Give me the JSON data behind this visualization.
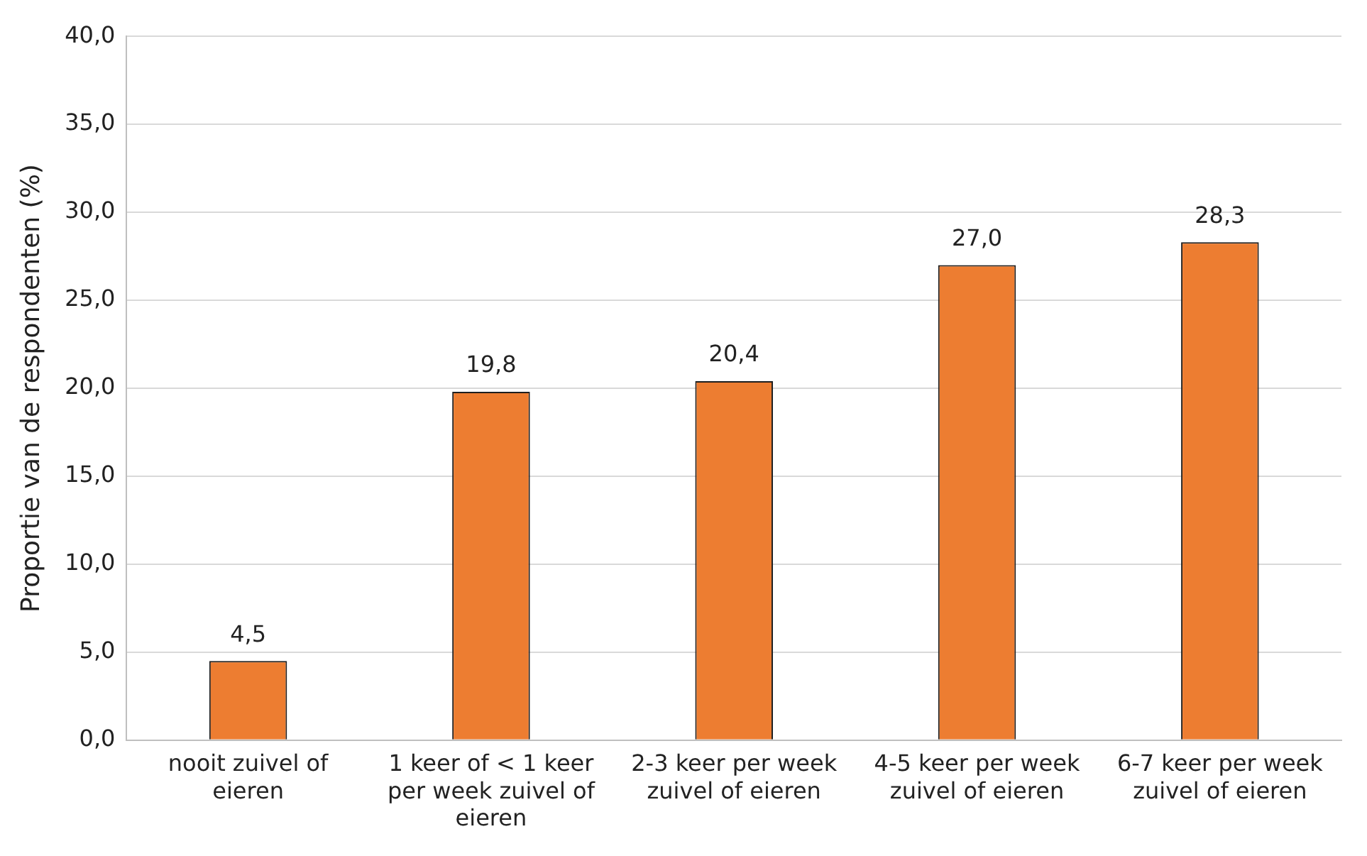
{
  "chart_data": {
    "type": "bar",
    "ylabel": "Proportie van de respondenten (%)",
    "categories": [
      "nooit zuivel of eieren",
      "1 keer of < 1 keer per week zuivel of eieren",
      "2-3 keer per week zuivel of eieren",
      "4-5 keer per week zuivel of eieren",
      "6-7 keer per week zuivel of eieren"
    ],
    "values": [
      4.5,
      19.8,
      20.4,
      27.0,
      28.3
    ],
    "value_labels": [
      "4,5",
      "19,8",
      "20,4",
      "27,0",
      "28,3"
    ],
    "color": "#ed7d31",
    "ylim": [
      0,
      40
    ],
    "yticks": [
      {
        "value": 0,
        "label": "0,0"
      },
      {
        "value": 5,
        "label": "5,0"
      },
      {
        "value": 10,
        "label": "10,0"
      },
      {
        "value": 15,
        "label": "15,0"
      },
      {
        "value": 20,
        "label": "20,0"
      },
      {
        "value": 25,
        "label": "25,0"
      },
      {
        "value": 30,
        "label": "30,0"
      },
      {
        "value": 35,
        "label": "35,0"
      },
      {
        "value": 40,
        "label": "40,0"
      }
    ],
    "grid": "y",
    "legend": false
  }
}
